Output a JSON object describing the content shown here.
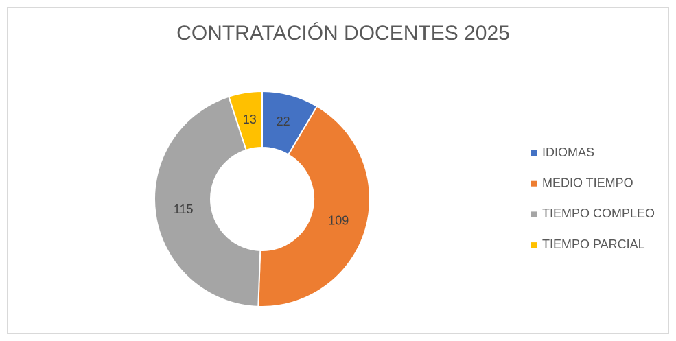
{
  "chart_data": {
    "type": "donut",
    "title": "CONTRATACIÓN DOCENTES 2025",
    "categories": [
      "IDIOMAS",
      "MEDIO TIEMPO",
      "TIEMPO COMPLEO",
      "TIEMPO PARCIAL"
    ],
    "values": [
      22,
      109,
      115,
      13
    ],
    "colors": [
      "#4472c4",
      "#ed7d31",
      "#a5a5a5",
      "#ffc000"
    ],
    "legend": "right"
  }
}
